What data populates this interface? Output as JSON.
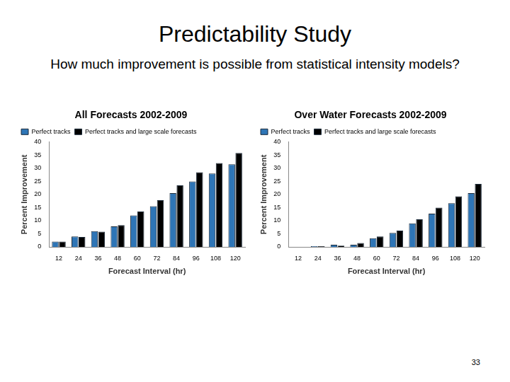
{
  "title": "Predictability Study",
  "subtitle": "How much improvement is possible from statistical intensity models?",
  "page_number": 33,
  "chart_data": [
    {
      "type": "bar",
      "title": "All Forecasts 2002-2009",
      "x_label": "Forecast Interval (hr)",
      "y_label": "Percent Improvement",
      "categories": [
        "12",
        "24",
        "36",
        "48",
        "60",
        "72",
        "84",
        "96",
        "108",
        "120"
      ],
      "series": [
        {
          "name": "Perfect tracks",
          "color": "#2e75b6",
          "values": [
            2,
            4,
            6,
            7.8,
            12,
            15.5,
            20.5,
            25,
            28,
            31.5
          ]
        },
        {
          "name": "Perfect tracks and large scale forecasts",
          "color": "#000000",
          "values": [
            2,
            3.8,
            5.8,
            8.3,
            13.5,
            17.8,
            23.5,
            28.5,
            32,
            35.8
          ]
        }
      ],
      "ylim": [
        0,
        40
      ],
      "yticks": [
        0,
        5,
        10,
        15,
        20,
        25,
        30,
        35,
        40
      ],
      "grid": false,
      "legend": "upper left"
    },
    {
      "type": "bar",
      "title": "Over Water Forecasts 2002-2009",
      "x_label": "Forecast Interval (hr)",
      "y_label": "Percent Improvement",
      "categories": [
        "12",
        "24",
        "36",
        "48",
        "60",
        "72",
        "84",
        "96",
        "108",
        "120"
      ],
      "series": [
        {
          "name": "Perfect tracks",
          "color": "#2e75b6",
          "values": [
            0,
            0.3,
            0.8,
            0.8,
            3.3,
            5.3,
            9,
            12.7,
            16.7,
            20.5
          ]
        },
        {
          "name": "Perfect tracks and large scale forecasts",
          "color": "#000000",
          "values": [
            0,
            0.3,
            0.5,
            1.5,
            4,
            6.2,
            10.5,
            15,
            19.3,
            24
          ]
        }
      ],
      "ylim": [
        0,
        40
      ],
      "yticks": [
        0,
        5,
        10,
        15,
        20,
        25,
        30,
        35,
        40
      ],
      "grid": false,
      "legend": "upper left"
    }
  ]
}
